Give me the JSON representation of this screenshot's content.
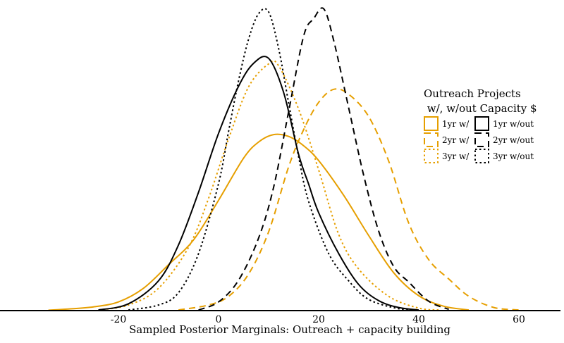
{
  "chart_data": {
    "type": "line",
    "title": "",
    "xlabel": "Sampled Posterior Marginals: Outreach + capacity building",
    "ylabel": "",
    "xlim": [
      -40,
      68
    ],
    "x_ticks": [
      -20,
      0,
      20,
      40,
      60
    ],
    "x_tick_labels": [
      "-20",
      "0",
      "20",
      "40",
      "60"
    ],
    "grid": false,
    "legend": {
      "title_lines": [
        "Outreach Projects",
        " w/, w/out Capacity $"
      ],
      "placement": "right"
    },
    "series": [
      {
        "name": "1yr w/",
        "color": "#E69F00",
        "dash": "solid",
        "x": [
          -34,
          -30,
          -25,
          -20,
          -15,
          -10,
          -5,
          0,
          5,
          8,
          11,
          14,
          17,
          20,
          25,
          30,
          35,
          40,
          45,
          50
        ],
        "y": [
          0.0006,
          0.0025,
          0.006,
          0.014,
          0.036,
          0.074,
          0.114,
          0.178,
          0.246,
          0.272,
          0.284,
          0.281,
          0.266,
          0.242,
          0.186,
          0.121,
          0.061,
          0.024,
          0.007,
          0.001
        ]
      },
      {
        "name": "2yr w/",
        "color": "#E69F00",
        "dash": "dashed",
        "x": [
          -8,
          -2,
          2,
          6,
          10,
          14,
          17,
          20,
          23,
          26,
          30,
          34,
          38,
          42,
          46,
          50,
          55,
          60
        ],
        "y": [
          0.001,
          0.009,
          0.023,
          0.059,
          0.127,
          0.232,
          0.292,
          0.336,
          0.357,
          0.349,
          0.313,
          0.241,
          0.141,
          0.082,
          0.051,
          0.023,
          0.005,
          0.001
        ]
      },
      {
        "name": "3yr w/",
        "color": "#E69F00",
        "dash": "dotted",
        "x": [
          -24,
          -18,
          -12,
          -6,
          -2,
          2,
          6,
          10,
          12,
          16,
          20,
          24,
          28,
          34,
          40,
          44
        ],
        "y": [
          0.001,
          0.009,
          0.036,
          0.102,
          0.181,
          0.277,
          0.361,
          0.398,
          0.395,
          0.325,
          0.227,
          0.123,
          0.067,
          0.023,
          0.004,
          0.001
        ]
      },
      {
        "name": "1yr w/out",
        "color": "#000000",
        "dash": "solid",
        "x": [
          -24,
          -18,
          -12,
          -8,
          -4,
          0,
          4,
          7,
          10,
          13,
          16,
          18,
          20,
          24,
          28,
          32,
          36,
          40
        ],
        "y": [
          0.001,
          0.011,
          0.048,
          0.106,
          0.191,
          0.286,
          0.362,
          0.399,
          0.407,
          0.352,
          0.252,
          0.204,
          0.158,
          0.092,
          0.042,
          0.016,
          0.005,
          0.001
        ]
      },
      {
        "name": "2yr w/out",
        "color": "#000000",
        "dash": "dashed",
        "x": [
          -4,
          0,
          4,
          8,
          11,
          14,
          17,
          19,
          21,
          23,
          26,
          29,
          32,
          35,
          38,
          42,
          46
        ],
        "y": [
          0.001,
          0.014,
          0.049,
          0.117,
          0.199,
          0.321,
          0.443,
          0.471,
          0.487,
          0.436,
          0.327,
          0.218,
          0.128,
          0.071,
          0.046,
          0.015,
          0.002
        ]
      },
      {
        "name": "3yr w/out",
        "color": "#000000",
        "dash": "dotted",
        "x": [
          -18,
          -12,
          -8,
          -4,
          0,
          2,
          4,
          6,
          8,
          10,
          12,
          14,
          16,
          18,
          22,
          26,
          30,
          36,
          40
        ],
        "y": [
          0.001,
          0.009,
          0.029,
          0.092,
          0.205,
          0.289,
          0.371,
          0.438,
          0.479,
          0.482,
          0.423,
          0.335,
          0.248,
          0.176,
          0.092,
          0.048,
          0.018,
          0.003,
          0.001
        ]
      }
    ],
    "ylim": [
      0,
      0.5
    ]
  }
}
